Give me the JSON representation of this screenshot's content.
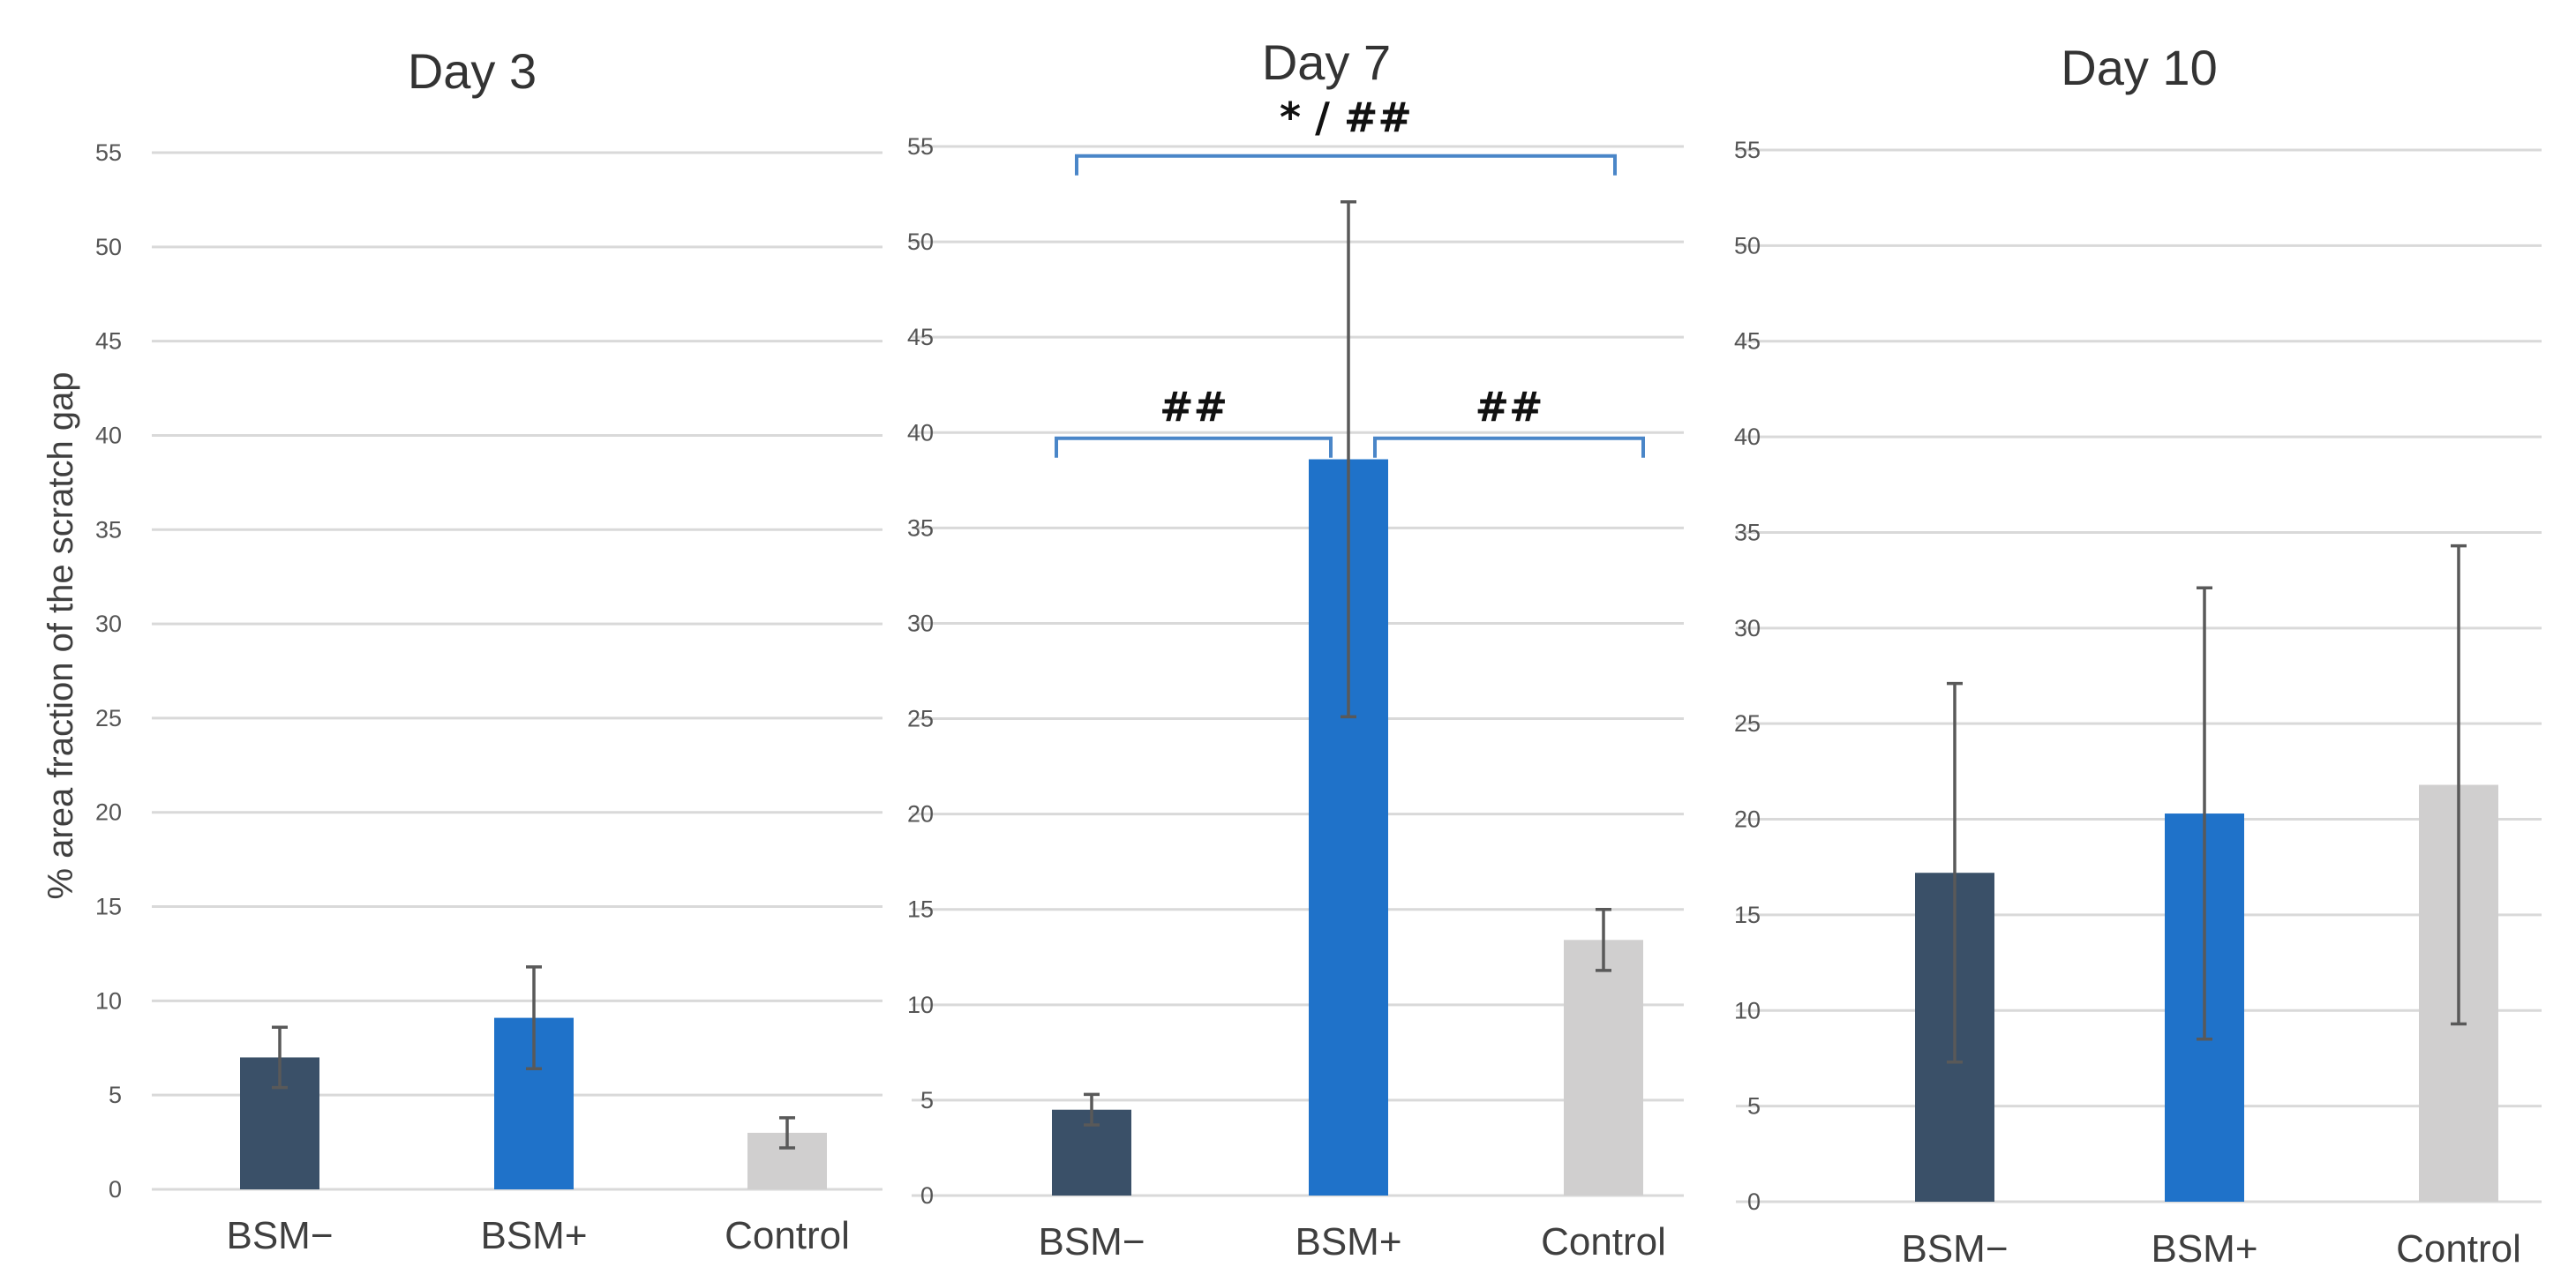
{
  "chart_data": [
    {
      "type": "bar",
      "title": "Day 3",
      "categories": [
        "BSM−",
        "BSM+",
        "Control"
      ],
      "values": [
        7.0,
        9.1,
        3.0
      ],
      "errors": [
        1.6,
        2.7,
        0.8
      ],
      "colors": [
        "#3a5068",
        "#1f72c9",
        "#d0cfcf"
      ],
      "ylabel": "% area fraction of the scratch gap",
      "ylim": [
        0,
        55
      ],
      "yticks": [
        0,
        5,
        10,
        15,
        20,
        25,
        30,
        35,
        40,
        45,
        50,
        55
      ],
      "grid": true,
      "annotations": []
    },
    {
      "type": "bar",
      "title": "Day 7",
      "categories": [
        "BSM−",
        "BSM+",
        "Control"
      ],
      "values": [
        4.5,
        38.6,
        13.4
      ],
      "errors": [
        0.8,
        13.5,
        1.6
      ],
      "colors": [
        "#3a5068",
        "#1f72c9",
        "#d0cfcf"
      ],
      "ylabel": "",
      "ylim": [
        0,
        55
      ],
      "yticks": [
        0,
        5,
        10,
        15,
        20,
        25,
        30,
        35,
        40,
        45,
        50,
        55
      ],
      "grid": true,
      "annotations": [
        {
          "text": "* / ##",
          "from": 0,
          "to": 2,
          "level": 54.5
        },
        {
          "text": "##",
          "from": 0,
          "to": 1,
          "level": 39.7
        },
        {
          "text": "##",
          "from": 1,
          "to": 2,
          "level": 39.7
        }
      ]
    },
    {
      "type": "bar",
      "title": "Day 10",
      "categories": [
        "BSM−",
        "BSM+",
        "Control"
      ],
      "values": [
        17.2,
        20.3,
        21.8
      ],
      "errors": [
        9.9,
        11.8,
        12.5
      ],
      "colors": [
        "#3a5068",
        "#1f72c9",
        "#d0cfcf"
      ],
      "ylabel": "",
      "ylim": [
        0,
        55
      ],
      "yticks": [
        0,
        5,
        10,
        15,
        20,
        25,
        30,
        35,
        40,
        45,
        50,
        55
      ],
      "grid": true,
      "annotations": []
    }
  ]
}
